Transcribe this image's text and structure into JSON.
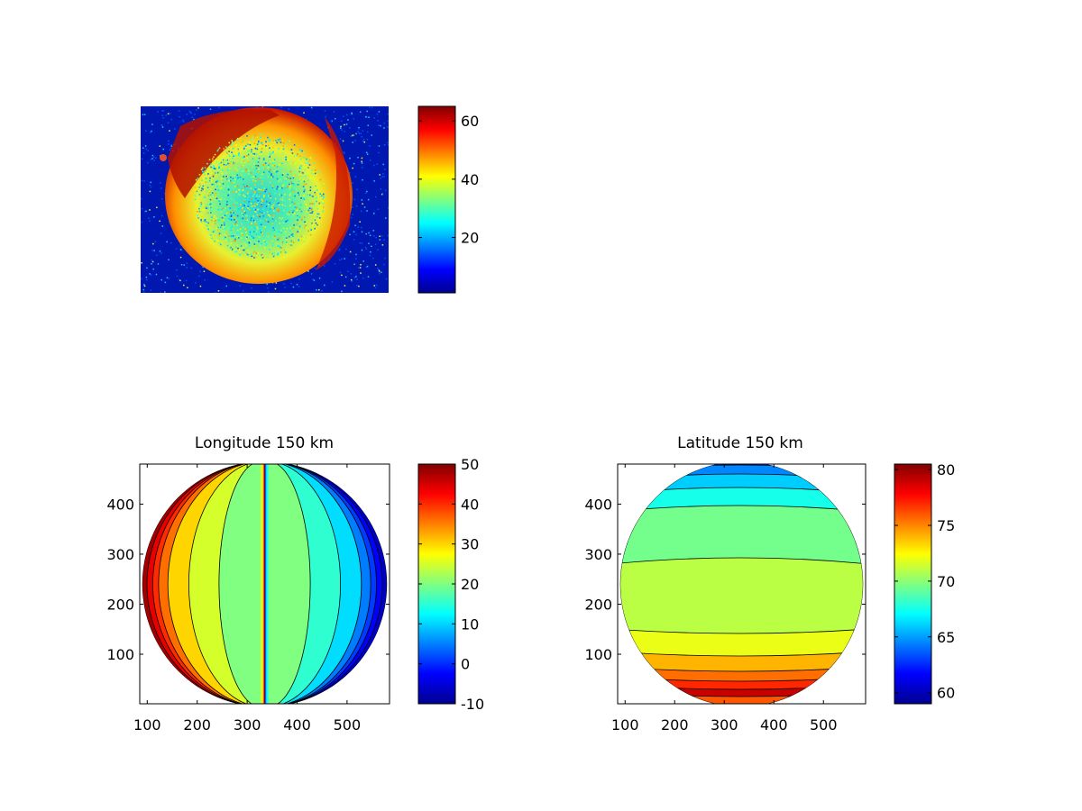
{
  "colors": {
    "jet": [
      "#00008f",
      "#0000ff",
      "#0080ff",
      "#00ffff",
      "#80ff80",
      "#ffff00",
      "#ff8000",
      "#ff0000",
      "#800000"
    ],
    "background_field": "#0018b0",
    "contour_line": "#000000"
  },
  "chart_data": [
    {
      "type": "heatmap",
      "title": "",
      "description_role": "noisy detector image of a disk",
      "colorbar": {
        "range": [
          1,
          65
        ],
        "ticks": [
          "20",
          "40",
          "60"
        ]
      },
      "axes_visible": false
    },
    {
      "type": "heatmap",
      "title": "Longitude 150 km",
      "x": {
        "range": [
          85,
          585
        ],
        "ticks": [
          "100",
          "200",
          "300",
          "400",
          "500"
        ]
      },
      "y": {
        "range": [
          1,
          480
        ],
        "ticks": [
          "100",
          "200",
          "300",
          "400"
        ]
      },
      "disk": {
        "center_x": 335,
        "center_y": 240,
        "radius": 245
      },
      "contour_levels": [
        10,
        15,
        20,
        25,
        30,
        35,
        40,
        45,
        50
      ],
      "colorbar": {
        "range": [
          -10,
          50
        ],
        "ticks": [
          "50",
          "40",
          "30",
          "20",
          "10",
          "0",
          "-10"
        ]
      }
    },
    {
      "type": "heatmap",
      "title": "Latitude 150 km",
      "x": {
        "range": [
          85,
          585
        ],
        "ticks": [
          "100",
          "200",
          "300",
          "400",
          "500"
        ]
      },
      "y": {
        "range": [
          1,
          480
        ],
        "ticks": [
          "100",
          "200",
          "300",
          "400"
        ]
      },
      "disk": {
        "center_x": 335,
        "center_y": 240,
        "radius": 245
      },
      "contour_levels": [
        60,
        62,
        64,
        66,
        68,
        70,
        72,
        74,
        76,
        78,
        80
      ],
      "colorbar": {
        "range": [
          59,
          80.5
        ],
        "ticks": [
          "80",
          "75",
          "70",
          "65",
          "60"
        ]
      }
    }
  ]
}
